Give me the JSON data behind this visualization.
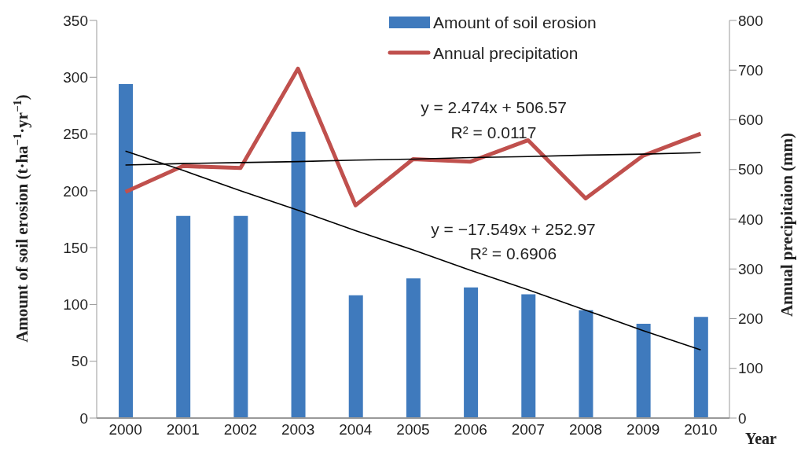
{
  "chart_data": {
    "type": "bar",
    "categories": [
      "2000",
      "2001",
      "2002",
      "2003",
      "2004",
      "2005",
      "2006",
      "2007",
      "2008",
      "2009",
      "2010"
    ],
    "xlabel": "Year",
    "ylabel": "Amount of soil erosion (t·ha$^{−1}$·yr$^{−1}$)",
    "y2label": "Annual precipitaion (mm)",
    "series": [
      {
        "name": "Amount of soil erosion",
        "color": "#3f7abd",
        "values": [
          294,
          178,
          178,
          252,
          108,
          123,
          115,
          109,
          95,
          83,
          89
        ]
      },
      {
        "name": "Annual precipitation",
        "type": "line",
        "axis": "y2",
        "color": "#c0504d",
        "values": [
          455,
          507,
          503,
          703,
          428,
          521,
          516,
          559,
          442,
          528,
          572
        ]
      },
      {
        "type": "line",
        "color": "#000000",
        "values": [
          235,
          218,
          200,
          183,
          165,
          148,
          130,
          113,
          95,
          77,
          60
        ]
      },
      {
        "type": "line",
        "axis": "y2",
        "color": "#000000",
        "values": [
          509,
          512,
          514,
          516,
          519,
          521,
          524,
          526,
          529,
          531,
          534
        ]
      }
    ],
    "ylim": [
      0,
      350
    ],
    "yticks": [
      0,
      50,
      100,
      150,
      200,
      250,
      300,
      350
    ],
    "y2lim": [
      0,
      800
    ],
    "y2ticks": [
      0,
      100,
      200,
      300,
      400,
      500,
      600,
      700,
      800
    ],
    "annotations": [
      "y = 2.474x + 506.57",
      "R² = 0.0117",
      "y = −17.549x + 252.97",
      "R² = 0.6906"
    ],
    "legend": "top right",
    "marker": "none"
  }
}
